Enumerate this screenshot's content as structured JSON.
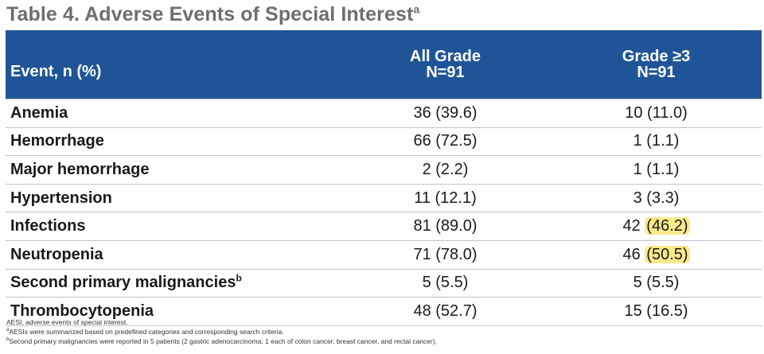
{
  "title": "Table 4. Adverse Events of Special Interest",
  "title_sup": "a",
  "columns": {
    "event": "Event, n (%)",
    "all_grade": {
      "label": "All Grade",
      "n": "N=91"
    },
    "grade3": {
      "label": "Grade ≥3",
      "n": "N=91"
    }
  },
  "rows": [
    {
      "event": "Anemia",
      "sup": "",
      "all": "36 (39.6)",
      "g3_n": "10",
      "g3_pct": "(11.0)"
    },
    {
      "event": "Hemorrhage",
      "sup": "",
      "all": "66 (72.5)",
      "g3_n": "1",
      "g3_pct": "(1.1)"
    },
    {
      "event": "Major hemorrhage",
      "sup": "",
      "all": "2 (2.2)",
      "g3_n": "1",
      "g3_pct": "(1.1)"
    },
    {
      "event": "Hypertension",
      "sup": "",
      "all": "11 (12.1)",
      "g3_n": "3",
      "g3_pct": "(3.3)"
    },
    {
      "event": "Infections",
      "sup": "",
      "all": "81 (89.0)",
      "g3_n": "42",
      "g3_pct": "(46.2)"
    },
    {
      "event": "Neutropenia",
      "sup": "",
      "all": "71 (78.0)",
      "g3_n": "46",
      "g3_pct": "(50.5)"
    },
    {
      "event": "Second primary malignancies",
      "sup": "b",
      "all": "5 (5.5)",
      "g3_n": "5",
      "g3_pct": "(5.5)"
    },
    {
      "event": "Thrombocytopenia",
      "sup": "",
      "all": "48 (52.7)",
      "g3_n": "15",
      "g3_pct": "(16.5)"
    }
  ],
  "highlight_color": "#fbe98a",
  "header_color": "#1f5597",
  "footnotes": {
    "f1": "AESI, adverse events of special interest.",
    "f2_sup": "a",
    "f2": "AESIs were summarized based on predefined categories and corresponding search criteria.",
    "f3_sup": "b",
    "f3": "Second primary malignancies were reported in 5 patients (2 gastric adenocarcinoma; 1 each of colon cancer, breast cancer, and rectal cancer)."
  }
}
